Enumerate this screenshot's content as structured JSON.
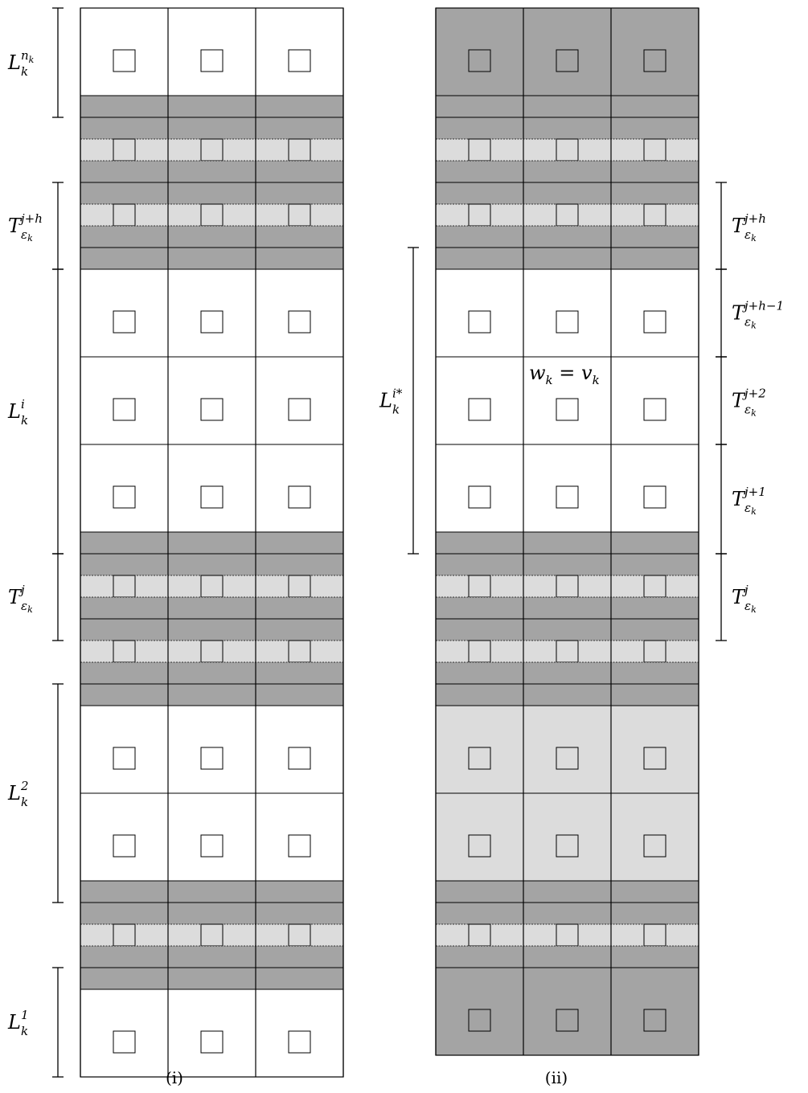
{
  "colors": {
    "white": "#ffffff",
    "light": "#dcdcdc",
    "dark": "#a4a4a4"
  },
  "panels": [
    {
      "caption": "(i)",
      "rows": [
        {
          "type": "cell",
          "shade": "white"
        },
        {
          "type": "band",
          "shade": "dark"
        },
        {
          "type": "band",
          "shade": "dark"
        },
        {
          "type": "band",
          "shade": "light",
          "square": true
        },
        {
          "type": "band",
          "shade": "dark"
        },
        {
          "type": "band",
          "shade": "dark"
        },
        {
          "type": "band",
          "shade": "light",
          "square": true
        },
        {
          "type": "band",
          "shade": "dark"
        },
        {
          "type": "band",
          "shade": "dark"
        },
        {
          "type": "cell",
          "shade": "white"
        },
        {
          "type": "cell",
          "shade": "white"
        },
        {
          "type": "cell",
          "shade": "white"
        },
        {
          "type": "band",
          "shade": "dark"
        },
        {
          "type": "band",
          "shade": "dark"
        },
        {
          "type": "band",
          "shade": "light",
          "square": true
        },
        {
          "type": "band",
          "shade": "dark"
        },
        {
          "type": "band",
          "shade": "dark"
        },
        {
          "type": "band",
          "shade": "light",
          "square": true
        },
        {
          "type": "band",
          "shade": "dark"
        },
        {
          "type": "band",
          "shade": "dark"
        },
        {
          "type": "cell",
          "shade": "white"
        },
        {
          "type": "cell",
          "shade": "white"
        },
        {
          "type": "band",
          "shade": "dark"
        },
        {
          "type": "band",
          "shade": "dark"
        },
        {
          "type": "band",
          "shade": "light",
          "square": true
        },
        {
          "type": "band",
          "shade": "dark"
        },
        {
          "type": "band",
          "shade": "dark"
        },
        {
          "type": "cell",
          "shade": "white"
        }
      ],
      "labels": [
        {
          "side": "left",
          "from_row": 0,
          "to_row": 2,
          "base": "L",
          "sup": "n",
          "supsub": "k",
          "sub": "k"
        },
        {
          "side": "left",
          "from_row": 5,
          "to_row": 9,
          "base": "T",
          "sup": "j+h",
          "sub": "ε",
          "subsub": "k"
        },
        {
          "side": "left",
          "from_row": 9,
          "to_row": 13,
          "base": "L",
          "sup": "i",
          "sub": "k"
        },
        {
          "side": "left",
          "from_row": 13,
          "to_row": 17,
          "base": "T",
          "sup": "j",
          "sub": "ε",
          "subsub": "k"
        },
        {
          "side": "left",
          "from_row": 19,
          "to_row": 23,
          "base": "L",
          "sup": "2",
          "sub": "k"
        },
        {
          "side": "left",
          "from_row": 26,
          "to_row": 28,
          "base": "L",
          "sup": "1",
          "sub": "k"
        }
      ]
    },
    {
      "caption": "(ii)",
      "note": "w",
      "note_sub": "k",
      "note_mid": " = v",
      "note_sub2": "k",
      "rows": [
        {
          "type": "cell",
          "shade": "dark"
        },
        {
          "type": "band",
          "shade": "dark"
        },
        {
          "type": "band",
          "shade": "dark"
        },
        {
          "type": "band",
          "shade": "light",
          "square": true
        },
        {
          "type": "band",
          "shade": "dark"
        },
        {
          "type": "band",
          "shade": "dark"
        },
        {
          "type": "band",
          "shade": "light",
          "square": true
        },
        {
          "type": "band",
          "shade": "dark"
        },
        {
          "type": "band",
          "shade": "dark"
        },
        {
          "type": "cell",
          "shade": "white"
        },
        {
          "type": "cell",
          "shade": "white"
        },
        {
          "type": "cell",
          "shade": "white"
        },
        {
          "type": "band",
          "shade": "dark"
        },
        {
          "type": "band",
          "shade": "dark"
        },
        {
          "type": "band",
          "shade": "light",
          "square": true
        },
        {
          "type": "band",
          "shade": "dark"
        },
        {
          "type": "band",
          "shade": "dark"
        },
        {
          "type": "band",
          "shade": "light",
          "square": true
        },
        {
          "type": "band",
          "shade": "dark"
        },
        {
          "type": "band",
          "shade": "dark"
        },
        {
          "type": "cell",
          "shade": "light"
        },
        {
          "type": "cell",
          "shade": "light"
        },
        {
          "type": "band",
          "shade": "dark"
        },
        {
          "type": "band",
          "shade": "dark"
        },
        {
          "type": "band",
          "shade": "light",
          "square": true
        },
        {
          "type": "band",
          "shade": "dark"
        },
        {
          "type": "cell",
          "shade": "dark"
        }
      ],
      "labels": [
        {
          "side": "left",
          "from_row": 8,
          "to_row": 13,
          "base": "L",
          "sup": "i*",
          "sub": "k"
        },
        {
          "side": "right",
          "from_row": 5,
          "to_row": 9,
          "base": "T",
          "sup": "j+h",
          "sub": "ε",
          "subsub": "k"
        },
        {
          "side": "right",
          "from_row": 9,
          "to_row": 10,
          "base": "T",
          "sup": "j+h−1",
          "sub": "ε",
          "subsub": "k"
        },
        {
          "side": "right",
          "from_row": 10,
          "to_row": 11,
          "base": "T",
          "sup": "j+2",
          "sub": "ε",
          "subsub": "k"
        },
        {
          "side": "right",
          "from_row": 11,
          "to_row": 13,
          "base": "T",
          "sup": "j+1",
          "sub": "ε",
          "subsub": "k"
        },
        {
          "side": "right",
          "from_row": 13,
          "to_row": 17,
          "base": "T",
          "sup": "j",
          "sub": "ε",
          "subsub": "k"
        }
      ]
    }
  ]
}
